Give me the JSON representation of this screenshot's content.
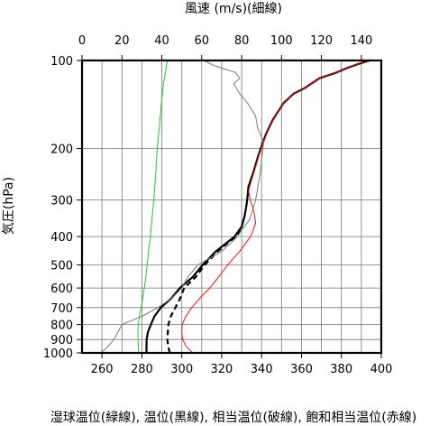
{
  "chart_data": {
    "type": "line",
    "top_axis_label": "風速 (m/s)(細線)",
    "left_axis_label": "気圧(hPa)",
    "bottom_axis_label": "湿球温位(緑線), 温位(黒線), 相当温位(破線), 飽和相当温位(赤線)",
    "y_scale": "log",
    "y_reversed": true,
    "ylim": [
      100,
      1000
    ],
    "y_ticks": [
      100,
      200,
      300,
      400,
      500,
      600,
      700,
      800,
      900,
      1000
    ],
    "y_tick_labels": [
      "100",
      "200",
      "300",
      "400",
      "500",
      "600",
      "700",
      "800",
      "900",
      "1000"
    ],
    "x_bottom_lim": [
      250,
      400
    ],
    "x_bottom_ticks": [
      260,
      280,
      300,
      320,
      340,
      360,
      380,
      400
    ],
    "x_bottom_tick_labels": [
      "260",
      "280",
      "300",
      "320",
      "340",
      "360",
      "380",
      "400"
    ],
    "x_top_lim": [
      0,
      150
    ],
    "x_top_ticks": [
      0,
      20,
      40,
      60,
      80,
      100,
      120,
      140
    ],
    "x_top_tick_labels": [
      "0",
      "20",
      "40",
      "60",
      "80",
      "100",
      "120",
      "140"
    ],
    "grid": true,
    "series": [
      {
        "name": "湿球温位",
        "axis": "bottom",
        "color": "#22cc22",
        "style": "solid",
        "points": [
          [
            278.5,
            1000
          ],
          [
            278.3,
            950
          ],
          [
            278.1,
            900
          ],
          [
            278.0,
            850
          ],
          [
            278.2,
            800
          ],
          [
            278.8,
            750
          ],
          [
            279.6,
            700
          ],
          [
            280.4,
            650
          ],
          [
            281.2,
            600
          ],
          [
            282.0,
            550
          ],
          [
            282.6,
            500
          ],
          [
            283.3,
            450
          ],
          [
            284.3,
            400
          ],
          [
            285.0,
            350
          ],
          [
            286.0,
            300
          ],
          [
            286.8,
            250
          ],
          [
            287.7,
            200
          ],
          [
            288.7,
            170
          ],
          [
            289.8,
            140
          ],
          [
            290.8,
            120
          ],
          [
            291.8,
            110
          ],
          [
            292.8,
            100
          ]
        ]
      },
      {
        "name": "温位",
        "axis": "bottom",
        "color": "#000000",
        "style": "solid",
        "points": [
          [
            282.3,
            1000
          ],
          [
            282.3,
            950
          ],
          [
            282.4,
            900
          ],
          [
            283.0,
            850
          ],
          [
            284.5,
            800
          ],
          [
            286.3,
            750
          ],
          [
            289.5,
            700
          ],
          [
            294.8,
            650
          ],
          [
            299.0,
            600
          ],
          [
            305.5,
            550
          ],
          [
            310.5,
            500
          ],
          [
            317.0,
            450
          ],
          [
            326.5,
            400
          ],
          [
            330.0,
            370
          ],
          [
            331.5,
            340
          ],
          [
            332.5,
            310
          ],
          [
            333.0,
            290
          ],
          [
            333.4,
            270
          ],
          [
            336.0,
            240
          ],
          [
            338.5,
            210
          ],
          [
            342.0,
            180
          ],
          [
            345.5,
            160
          ],
          [
            351.0,
            140
          ],
          [
            356.0,
            130
          ],
          [
            361.0,
            125
          ],
          [
            369.0,
            115
          ],
          [
            377.5,
            110
          ],
          [
            383.0,
            106
          ],
          [
            390.0,
            102
          ],
          [
            394.5,
            100
          ]
        ]
      },
      {
        "name": "相当温位",
        "axis": "bottom",
        "color": "#000000",
        "style": "dashed",
        "points": [
          [
            294.0,
            1000
          ],
          [
            293.2,
            950
          ],
          [
            292.8,
            900
          ],
          [
            293.0,
            850
          ],
          [
            293.3,
            800
          ],
          [
            294.5,
            750
          ],
          [
            296.8,
            700
          ],
          [
            299.2,
            650
          ],
          [
            301.2,
            600
          ],
          [
            307.0,
            550
          ],
          [
            311.5,
            500
          ],
          [
            318.0,
            450
          ],
          [
            327.0,
            400
          ],
          [
            330.5,
            370
          ]
        ]
      },
      {
        "name": "飽和相当温位",
        "axis": "bottom",
        "color": "#ee1111",
        "style": "solid",
        "points": [
          [
            305.5,
            1000
          ],
          [
            302.2,
            950
          ],
          [
            300.4,
            900
          ],
          [
            300.0,
            850
          ],
          [
            300.2,
            800
          ],
          [
            302.0,
            750
          ],
          [
            305.0,
            700
          ],
          [
            309.0,
            650
          ],
          [
            314.0,
            600
          ],
          [
            318.5,
            550
          ],
          [
            323.0,
            500
          ],
          [
            329.0,
            450
          ],
          [
            334.5,
            400
          ],
          [
            337.0,
            360
          ],
          [
            336.2,
            330
          ],
          [
            334.3,
            300
          ],
          [
            333.5,
            280
          ],
          [
            334.0,
            270
          ],
          [
            336.3,
            240
          ],
          [
            338.8,
            210
          ],
          [
            342.3,
            180
          ],
          [
            345.6,
            160
          ],
          [
            351.0,
            140
          ],
          [
            356.0,
            130
          ],
          [
            361.0,
            125
          ],
          [
            369.0,
            115
          ],
          [
            377.5,
            110
          ],
          [
            383.0,
            106
          ],
          [
            390.0,
            102
          ],
          [
            395.5,
            100
          ]
        ]
      },
      {
        "name": "風速",
        "axis": "top",
        "color": "#708070",
        "style": "solid",
        "points": [
          [
            9,
            1000
          ],
          [
            11,
            980
          ],
          [
            13,
            950
          ],
          [
            16,
            900
          ],
          [
            20,
            800
          ],
          [
            30,
            750
          ],
          [
            38,
            700
          ],
          [
            45,
            650
          ],
          [
            50,
            600
          ],
          [
            53,
            550
          ],
          [
            58,
            500
          ],
          [
            70,
            450
          ],
          [
            78,
            400
          ],
          [
            80,
            380
          ],
          [
            84,
            350
          ],
          [
            87,
            300
          ],
          [
            89,
            250
          ],
          [
            90,
            220
          ],
          [
            91,
            190
          ],
          [
            88,
            170
          ],
          [
            87,
            155
          ],
          [
            83,
            140
          ],
          [
            79,
            130
          ],
          [
            76,
            120
          ],
          [
            79,
            115
          ],
          [
            77,
            110
          ],
          [
            66,
            104
          ],
          [
            61,
            100
          ]
        ]
      }
    ]
  }
}
